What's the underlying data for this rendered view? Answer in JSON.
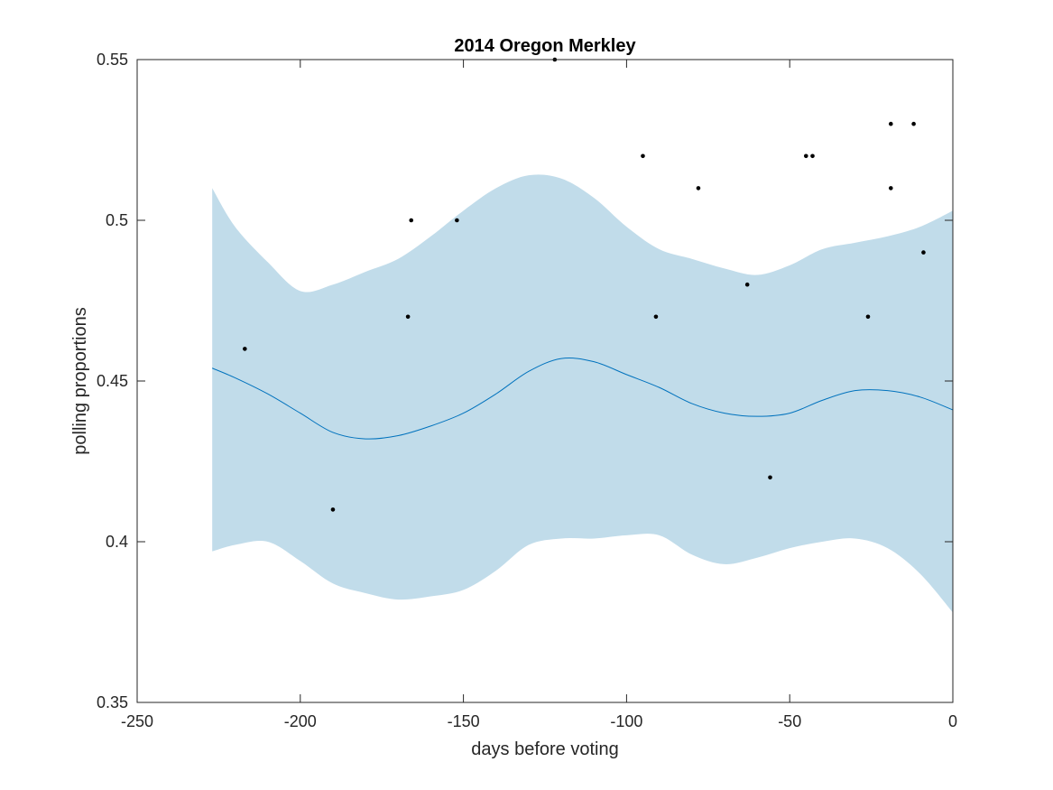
{
  "chart_data": {
    "type": "line",
    "title": "2014 Oregon Merkley",
    "xlabel": "days before voting",
    "ylabel": "polling proportions",
    "xlim": [
      -250,
      0
    ],
    "ylim": [
      0.35,
      0.55
    ],
    "x_ticks": [
      -250,
      -200,
      -150,
      -100,
      -50,
      0
    ],
    "x_tick_labels": [
      "-250",
      "-200",
      "-150",
      "-100",
      "-50",
      "0"
    ],
    "y_ticks": [
      0.35,
      0.4,
      0.45,
      0.5,
      0.55
    ],
    "y_tick_labels": [
      "0.35",
      "0.4",
      "0.45",
      "0.5",
      "0.55"
    ],
    "grid": false,
    "colors": {
      "band": "#c1dcea",
      "line": "#0072bd",
      "points": "#000000",
      "axes": "#262626"
    },
    "series": [
      {
        "type": "band",
        "x": [
          -227,
          -220,
          -210,
          -200,
          -190,
          -180,
          -170,
          -160,
          -150,
          -140,
          -130,
          -120,
          -110,
          -100,
          -90,
          -80,
          -70,
          -60,
          -50,
          -40,
          -30,
          -20,
          -10,
          0
        ],
        "lower": [
          0.397,
          0.399,
          0.4,
          0.394,
          0.387,
          0.384,
          0.382,
          0.383,
          0.385,
          0.391,
          0.399,
          0.401,
          0.401,
          0.402,
          0.402,
          0.396,
          0.393,
          0.395,
          0.398,
          0.4,
          0.401,
          0.398,
          0.39,
          0.378
        ],
        "upper": [
          0.51,
          0.498,
          0.487,
          0.478,
          0.48,
          0.484,
          0.488,
          0.495,
          0.503,
          0.51,
          0.514,
          0.513,
          0.507,
          0.498,
          0.491,
          0.488,
          0.485,
          0.483,
          0.486,
          0.491,
          0.493,
          0.495,
          0.498,
          0.503
        ]
      },
      {
        "type": "line",
        "x": [
          -227,
          -220,
          -210,
          -200,
          -190,
          -180,
          -170,
          -160,
          -150,
          -140,
          -130,
          -120,
          -110,
          -100,
          -90,
          -80,
          -70,
          -60,
          -50,
          -40,
          -30,
          -20,
          -10,
          0
        ],
        "y": [
          0.454,
          0.451,
          0.446,
          0.44,
          0.434,
          0.432,
          0.433,
          0.436,
          0.44,
          0.446,
          0.453,
          0.457,
          0.456,
          0.452,
          0.448,
          0.443,
          0.44,
          0.439,
          0.44,
          0.444,
          0.447,
          0.447,
          0.445,
          0.441
        ]
      },
      {
        "type": "scatter",
        "points": [
          {
            "x": -217,
            "y": 0.46
          },
          {
            "x": -190,
            "y": 0.41
          },
          {
            "x": -167,
            "y": 0.47
          },
          {
            "x": -166,
            "y": 0.5
          },
          {
            "x": -152,
            "y": 0.5
          },
          {
            "x": -122,
            "y": 0.55
          },
          {
            "x": -95,
            "y": 0.52
          },
          {
            "x": -91,
            "y": 0.47
          },
          {
            "x": -78,
            "y": 0.51
          },
          {
            "x": -63,
            "y": 0.48
          },
          {
            "x": -56,
            "y": 0.42
          },
          {
            "x": -45,
            "y": 0.52
          },
          {
            "x": -43,
            "y": 0.52
          },
          {
            "x": -26,
            "y": 0.47
          },
          {
            "x": -19,
            "y": 0.53
          },
          {
            "x": -19,
            "y": 0.51
          },
          {
            "x": -12,
            "y": 0.53
          },
          {
            "x": -9,
            "y": 0.49
          }
        ]
      }
    ]
  }
}
